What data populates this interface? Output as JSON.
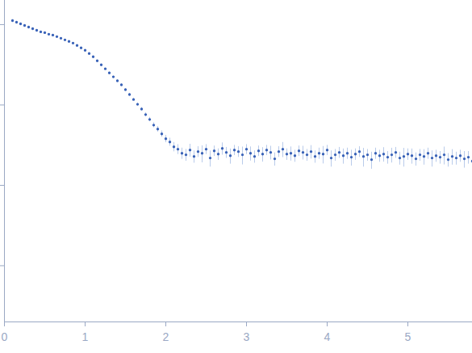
{
  "chart_data": {
    "type": "scatter",
    "x": [
      0.1,
      0.15,
      0.2,
      0.25,
      0.3,
      0.35,
      0.4,
      0.45,
      0.5,
      0.55,
      0.6,
      0.65,
      0.7,
      0.75,
      0.8,
      0.85,
      0.9,
      0.95,
      1.0,
      1.05,
      1.1,
      1.15,
      1.2,
      1.25,
      1.3,
      1.35,
      1.4,
      1.45,
      1.5,
      1.55,
      1.6,
      1.65,
      1.7,
      1.75,
      1.8,
      1.85,
      1.9,
      1.95,
      2.0,
      2.05,
      2.1,
      2.15,
      2.2,
      2.25,
      2.3,
      2.35,
      2.4,
      2.45,
      2.5,
      2.55,
      2.6,
      2.65,
      2.7,
      2.75,
      2.8,
      2.85,
      2.9,
      2.95,
      3.0,
      3.05,
      3.1,
      3.15,
      3.2,
      3.25,
      3.3,
      3.35,
      3.4,
      3.45,
      3.5,
      3.55,
      3.6,
      3.65,
      3.7,
      3.75,
      3.8,
      3.85,
      3.9,
      3.95,
      4.0,
      4.05,
      4.1,
      4.15,
      4.2,
      4.25,
      4.3,
      4.35,
      4.4,
      4.45,
      4.5,
      4.55,
      4.6,
      4.65,
      4.7,
      4.75,
      4.8,
      4.85,
      4.9,
      4.95,
      5.0,
      5.05,
      5.1,
      5.15,
      5.2,
      5.25,
      5.3,
      5.35,
      5.4,
      5.45,
      5.5,
      5.55,
      5.6,
      5.65,
      5.7,
      5.75,
      5.8
    ],
    "values": [
      1.122,
      1.072,
      1.023,
      0.977,
      0.933,
      0.891,
      0.851,
      0.813,
      0.794,
      0.759,
      0.741,
      0.708,
      0.676,
      0.646,
      0.617,
      0.589,
      0.55,
      0.513,
      0.479,
      0.437,
      0.398,
      0.355,
      0.316,
      0.282,
      0.251,
      0.224,
      0.2,
      0.178,
      0.155,
      0.135,
      0.117,
      0.102,
      0.0891,
      0.0759,
      0.0661,
      0.0562,
      0.0501,
      0.0437,
      0.038,
      0.0347,
      0.0302,
      0.0282,
      0.0251,
      0.024,
      0.0275,
      0.0229,
      0.0263,
      0.0251,
      0.0282,
      0.0219,
      0.0269,
      0.0245,
      0.0288,
      0.0257,
      0.0234,
      0.0275,
      0.0263,
      0.024,
      0.0282,
      0.0251,
      0.0229,
      0.0269,
      0.0245,
      0.0275,
      0.0257,
      0.0214,
      0.0263,
      0.0282,
      0.0245,
      0.0251,
      0.0234,
      0.0269,
      0.0257,
      0.024,
      0.0263,
      0.0229,
      0.0251,
      0.0245,
      0.0275,
      0.0219,
      0.024,
      0.0257,
      0.0234,
      0.0251,
      0.0224,
      0.0245,
      0.0263,
      0.0229,
      0.024,
      0.0209,
      0.0251,
      0.0234,
      0.0245,
      0.0224,
      0.024,
      0.0257,
      0.0219,
      0.0229,
      0.0245,
      0.0234,
      0.0214,
      0.024,
      0.0229,
      0.0251,
      0.0219,
      0.0234,
      0.0224,
      0.024,
      0.0209,
      0.0229,
      0.0219,
      0.0234,
      0.0214,
      0.0224,
      0.02
    ],
    "errors": [
      0.03,
      0.025,
      0.02,
      0.015,
      0.01,
      0.01,
      0.01,
      0.008,
      0.008,
      0.008,
      0.007,
      0.007,
      0.007,
      0.006,
      0.006,
      0.006,
      0.006,
      0.006,
      0.006,
      0.006,
      0.005,
      0.005,
      0.005,
      0.005,
      0.005,
      0.005,
      0.005,
      0.005,
      0.005,
      0.005,
      0.004,
      0.004,
      0.004,
      0.004,
      0.004,
      0.004,
      0.004,
      0.004,
      0.004,
      0.004,
      0.004,
      0.004,
      0.004,
      0.004,
      0.005,
      0.004,
      0.004,
      0.006,
      0.004,
      0.005,
      0.004,
      0.004,
      0.005,
      0.004,
      0.005,
      0.004,
      0.004,
      0.006,
      0.004,
      0.005,
      0.004,
      0.004,
      0.005,
      0.004,
      0.005,
      0.004,
      0.004,
      0.006,
      0.004,
      0.005,
      0.004,
      0.004,
      0.005,
      0.004,
      0.005,
      0.004,
      0.004,
      0.006,
      0.004,
      0.005,
      0.004,
      0.004,
      0.005,
      0.004,
      0.005,
      0.004,
      0.004,
      0.006,
      0.004,
      0.005,
      0.004,
      0.004,
      0.005,
      0.004,
      0.005,
      0.004,
      0.004,
      0.006,
      0.004,
      0.005,
      0.004,
      0.004,
      0.005,
      0.004,
      0.005,
      0.004,
      0.004,
      0.006,
      0.004,
      0.005,
      0.004,
      0.004,
      0.005,
      0.004,
      0.005
    ],
    "color": "#3a63b8",
    "error_color": "#b9cbea",
    "marker": "circle",
    "log": "y",
    "xlim": [
      0,
      5.8
    ],
    "xticks": [
      0,
      1,
      2,
      3,
      4,
      5
    ],
    "ylim": [
      0.0002,
      2
    ],
    "yticks": [
      0.001,
      0.01,
      0.1,
      1
    ],
    "tick_labels": "x",
    "grid": false
  }
}
